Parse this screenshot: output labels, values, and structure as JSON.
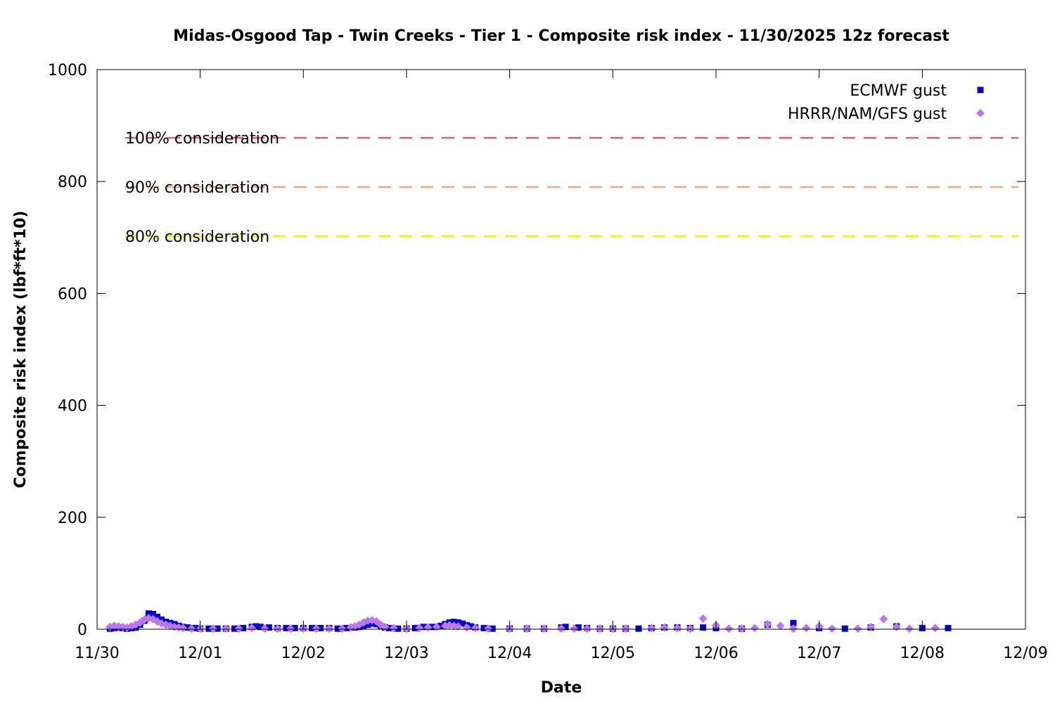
{
  "chart_data": {
    "type": "scatter",
    "title": "Midas-Osgood Tap - Twin Creeks - Tier 1 - Composite risk index - 11/30/2025 12z forecast",
    "xlabel": "Date",
    "ylabel": "Composite risk index (lbf*ft*10)",
    "x_unit": "date (Nov 30 – Dec 9, 2025)",
    "xlim": [
      "2025-11-30T00:00",
      "2025-12-09T00:00"
    ],
    "ylim": [
      0,
      1000
    ],
    "x_ticks": [
      "11/30",
      "12/01",
      "12/02",
      "12/03",
      "12/04",
      "12/05",
      "12/06",
      "12/07",
      "12/08",
      "12/09"
    ],
    "y_ticks": [
      "0",
      "200",
      "400",
      "600",
      "800",
      "1000"
    ],
    "y_tick_values": [
      0,
      200,
      400,
      600,
      800,
      1000
    ],
    "grid": false,
    "legend_position": "top-right",
    "thresholds": [
      {
        "label": "100% consideration",
        "value": 878,
        "color": "#d95f76"
      },
      {
        "label": "90% consideration",
        "value": 790,
        "color": "#f4a582"
      },
      {
        "label": "80% consideration",
        "value": 702,
        "color": "#f0f000"
      }
    ],
    "series": [
      {
        "name": "ECMWF gust",
        "marker": "square",
        "color": "#0000cc",
        "points": [
          [
            "2025-11-30T03:00",
            1
          ],
          [
            "2025-11-30T04:00",
            2
          ],
          [
            "2025-11-30T05:00",
            3
          ],
          [
            "2025-11-30T06:00",
            2
          ],
          [
            "2025-11-30T07:00",
            1
          ],
          [
            "2025-11-30T08:00",
            2
          ],
          [
            "2025-11-30T09:00",
            3
          ],
          [
            "2025-11-30T10:00",
            8
          ],
          [
            "2025-11-30T11:00",
            15
          ],
          [
            "2025-11-30T12:00",
            28
          ],
          [
            "2025-11-30T13:00",
            27
          ],
          [
            "2025-11-30T14:00",
            22
          ],
          [
            "2025-11-30T15:00",
            17
          ],
          [
            "2025-11-30T16:00",
            13
          ],
          [
            "2025-11-30T17:00",
            11
          ],
          [
            "2025-11-30T18:00",
            9
          ],
          [
            "2025-11-30T19:00",
            6
          ],
          [
            "2025-11-30T20:00",
            4
          ],
          [
            "2025-11-30T21:00",
            3
          ],
          [
            "2025-11-30T22:00",
            2
          ],
          [
            "2025-11-30T23:00",
            2
          ],
          [
            "2025-12-01T00:00",
            1
          ],
          [
            "2025-12-01T02:00",
            1
          ],
          [
            "2025-12-01T04:00",
            1
          ],
          [
            "2025-12-01T06:00",
            1
          ],
          [
            "2025-12-01T08:00",
            1
          ],
          [
            "2025-12-01T10:00",
            2
          ],
          [
            "2025-12-01T12:00",
            4
          ],
          [
            "2025-12-01T13:00",
            5
          ],
          [
            "2025-12-01T14:00",
            4
          ],
          [
            "2025-12-01T16:00",
            3
          ],
          [
            "2025-12-01T18:00",
            2
          ],
          [
            "2025-12-01T20:00",
            2
          ],
          [
            "2025-12-01T22:00",
            2
          ],
          [
            "2025-12-02T00:00",
            2
          ],
          [
            "2025-12-02T02:00",
            2
          ],
          [
            "2025-12-02T04:00",
            2
          ],
          [
            "2025-12-02T06:00",
            2
          ],
          [
            "2025-12-02T08:00",
            1
          ],
          [
            "2025-12-02T10:00",
            2
          ],
          [
            "2025-12-02T12:00",
            3
          ],
          [
            "2025-12-02T13:00",
            4
          ],
          [
            "2025-12-02T14:00",
            6
          ],
          [
            "2025-12-02T15:00",
            8
          ],
          [
            "2025-12-02T16:00",
            10
          ],
          [
            "2025-12-02T17:00",
            9
          ],
          [
            "2025-12-02T18:00",
            5
          ],
          [
            "2025-12-02T19:00",
            3
          ],
          [
            "2025-12-02T20:00",
            2
          ],
          [
            "2025-12-02T22:00",
            1
          ],
          [
            "2025-12-03T00:00",
            1
          ],
          [
            "2025-12-03T02:00",
            2
          ],
          [
            "2025-12-03T04:00",
            4
          ],
          [
            "2025-12-03T06:00",
            4
          ],
          [
            "2025-12-03T08:00",
            6
          ],
          [
            "2025-12-03T09:00",
            9
          ],
          [
            "2025-12-03T10:00",
            12
          ],
          [
            "2025-12-03T11:00",
            13
          ],
          [
            "2025-12-03T12:00",
            12
          ],
          [
            "2025-12-03T13:00",
            10
          ],
          [
            "2025-12-03T14:00",
            7
          ],
          [
            "2025-12-03T15:00",
            5
          ],
          [
            "2025-12-03T16:00",
            3
          ],
          [
            "2025-12-03T18:00",
            2
          ],
          [
            "2025-12-03T20:00",
            1
          ],
          [
            "2025-12-04T00:00",
            1
          ],
          [
            "2025-12-04T04:00",
            1
          ],
          [
            "2025-12-04T08:00",
            1
          ],
          [
            "2025-12-04T12:00",
            3
          ],
          [
            "2025-12-04T13:00",
            4
          ],
          [
            "2025-12-04T16:00",
            3
          ],
          [
            "2025-12-04T18:00",
            2
          ],
          [
            "2025-12-04T21:00",
            1
          ],
          [
            "2025-12-05T00:00",
            1
          ],
          [
            "2025-12-05T03:00",
            1
          ],
          [
            "2025-12-05T06:00",
            1
          ],
          [
            "2025-12-05T09:00",
            2
          ],
          [
            "2025-12-05T12:00",
            3
          ],
          [
            "2025-12-05T15:00",
            3
          ],
          [
            "2025-12-05T18:00",
            2
          ],
          [
            "2025-12-05T21:00",
            3
          ],
          [
            "2025-12-06T00:00",
            2
          ],
          [
            "2025-12-06T06:00",
            1
          ],
          [
            "2025-12-06T12:00",
            8
          ],
          [
            "2025-12-06T18:00",
            11
          ],
          [
            "2025-12-07T00:00",
            2
          ],
          [
            "2025-12-07T06:00",
            1
          ],
          [
            "2025-12-07T12:00",
            3
          ],
          [
            "2025-12-07T18:00",
            5
          ],
          [
            "2025-12-08T00:00",
            2
          ],
          [
            "2025-12-08T06:00",
            2
          ]
        ]
      },
      {
        "name": "HRRR/NAM/GFS gust",
        "marker": "diamond",
        "color": "#bb77ee",
        "points": [
          [
            "2025-11-30T03:00",
            4
          ],
          [
            "2025-11-30T04:00",
            6
          ],
          [
            "2025-11-30T05:00",
            5
          ],
          [
            "2025-11-30T06:00",
            4
          ],
          [
            "2025-11-30T07:00",
            3
          ],
          [
            "2025-11-30T08:00",
            5
          ],
          [
            "2025-11-30T09:00",
            8
          ],
          [
            "2025-11-30T10:00",
            12
          ],
          [
            "2025-11-30T11:00",
            17
          ],
          [
            "2025-11-30T12:00",
            20
          ],
          [
            "2025-11-30T13:00",
            18
          ],
          [
            "2025-11-30T14:00",
            14
          ],
          [
            "2025-11-30T15:00",
            10
          ],
          [
            "2025-11-30T16:00",
            8
          ],
          [
            "2025-11-30T17:00",
            6
          ],
          [
            "2025-11-30T18:00",
            4
          ],
          [
            "2025-11-30T19:00",
            3
          ],
          [
            "2025-11-30T20:00",
            2
          ],
          [
            "2025-11-30T22:00",
            1
          ],
          [
            "2025-12-01T00:00",
            1
          ],
          [
            "2025-12-01T03:00",
            1
          ],
          [
            "2025-12-01T06:00",
            1
          ],
          [
            "2025-12-01T09:00",
            1
          ],
          [
            "2025-12-01T12:00",
            2
          ],
          [
            "2025-12-01T15:00",
            1
          ],
          [
            "2025-12-01T18:00",
            1
          ],
          [
            "2025-12-01T21:00",
            1
          ],
          [
            "2025-12-02T00:00",
            1
          ],
          [
            "2025-12-02T03:00",
            1
          ],
          [
            "2025-12-02T06:00",
            1
          ],
          [
            "2025-12-02T09:00",
            1
          ],
          [
            "2025-12-02T11:00",
            3
          ],
          [
            "2025-12-02T12:00",
            5
          ],
          [
            "2025-12-02T13:00",
            8
          ],
          [
            "2025-12-02T14:00",
            12
          ],
          [
            "2025-12-02T15:00",
            15
          ],
          [
            "2025-12-02T16:00",
            16
          ],
          [
            "2025-12-02T17:00",
            14
          ],
          [
            "2025-12-02T18:00",
            8
          ],
          [
            "2025-12-02T19:00",
            4
          ],
          [
            "2025-12-02T21:00",
            2
          ],
          [
            "2025-12-03T00:00",
            1
          ],
          [
            "2025-12-03T03:00",
            2
          ],
          [
            "2025-12-03T05:00",
            3
          ],
          [
            "2025-12-03T07:00",
            4
          ],
          [
            "2025-12-03T09:00",
            6
          ],
          [
            "2025-12-03T10:00",
            7
          ],
          [
            "2025-12-03T11:00",
            6
          ],
          [
            "2025-12-03T12:00",
            5
          ],
          [
            "2025-12-03T14:00",
            3
          ],
          [
            "2025-12-03T16:00",
            2
          ],
          [
            "2025-12-03T19:00",
            1
          ],
          [
            "2025-12-04T00:00",
            1
          ],
          [
            "2025-12-04T04:00",
            1
          ],
          [
            "2025-12-04T08:00",
            1
          ],
          [
            "2025-12-04T12:00",
            1
          ],
          [
            "2025-12-04T15:00",
            1
          ],
          [
            "2025-12-04T18:00",
            1
          ],
          [
            "2025-12-04T21:00",
            1
          ],
          [
            "2025-12-05T00:00",
            1
          ],
          [
            "2025-12-05T03:00",
            1
          ],
          [
            "2025-12-05T09:00",
            2
          ],
          [
            "2025-12-05T12:00",
            3
          ],
          [
            "2025-12-05T15:00",
            2
          ],
          [
            "2025-12-05T18:00",
            1
          ],
          [
            "2025-12-05T21:00",
            19
          ],
          [
            "2025-12-06T00:00",
            7
          ],
          [
            "2025-12-06T03:00",
            1
          ],
          [
            "2025-12-06T06:00",
            1
          ],
          [
            "2025-12-06T09:00",
            2
          ],
          [
            "2025-12-06T12:00",
            9
          ],
          [
            "2025-12-06T15:00",
            6
          ],
          [
            "2025-12-06T18:00",
            1
          ],
          [
            "2025-12-06T21:00",
            2
          ],
          [
            "2025-12-07T00:00",
            5
          ],
          [
            "2025-12-07T03:00",
            1
          ],
          [
            "2025-12-07T09:00",
            1
          ],
          [
            "2025-12-07T12:00",
            4
          ],
          [
            "2025-12-07T15:00",
            18
          ],
          [
            "2025-12-07T18:00",
            4
          ],
          [
            "2025-12-07T21:00",
            1
          ],
          [
            "2025-12-08T03:00",
            2
          ]
        ]
      }
    ]
  }
}
